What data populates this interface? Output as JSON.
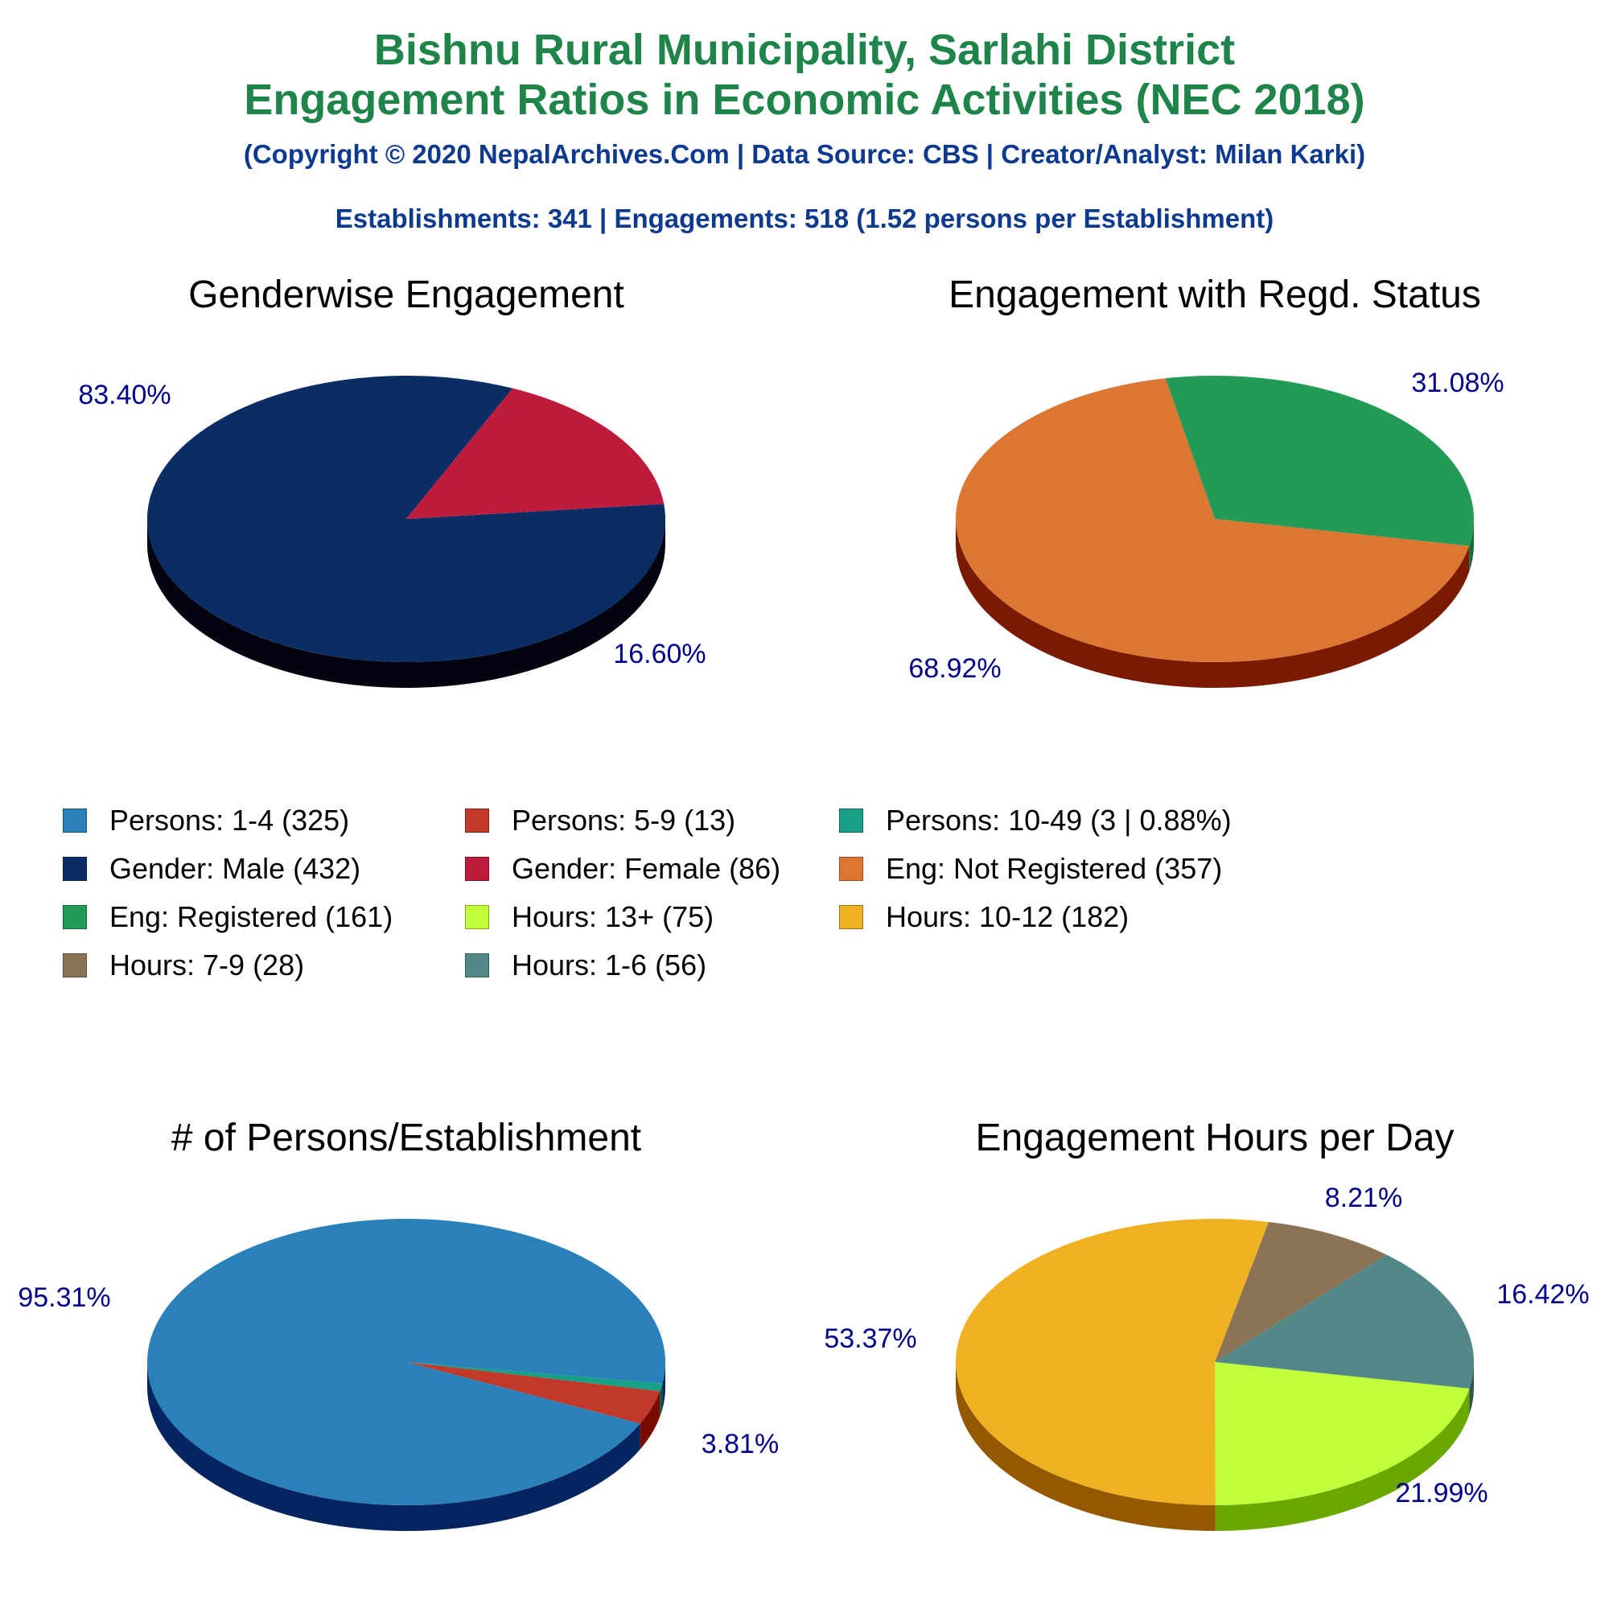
{
  "header": {
    "title_line1": "Bishnu Rural Municipality, Sarlahi District",
    "title_line2": "Engagement Ratios in Economic Activities (NEC 2018)",
    "copyright": "(Copyright © 2020 NepalArchives.Com | Data Source: CBS | Creator/Analyst: Milan Karki)",
    "summary": "Establishments: 341 | Engagements: 518 (1.52 persons per Establishment)"
  },
  "colors": {
    "title": "#1e8449",
    "subtitle": "#0d3a8f",
    "pct_label": "#00008b"
  },
  "chart_data": [
    {
      "type": "pie",
      "title": "Genderwise Engagement",
      "start_angle_deg": -6,
      "slices": [
        {
          "label": "Gender: Male",
          "value": 432,
          "pct_text": "83.40%",
          "color": "#0b2d66",
          "side": "#03040f"
        },
        {
          "label": "Gender: Female",
          "value": 86,
          "pct_text": "16.60%",
          "color": "#be1a3b",
          "side": "#6e0009"
        }
      ]
    },
    {
      "type": "pie",
      "title": "Engagement with Regd. Status",
      "start_angle_deg": -101,
      "slices": [
        {
          "label": "Eng: Registered",
          "value": 161,
          "pct_text": "31.08%",
          "color": "#239b56",
          "side": "#136e38"
        },
        {
          "label": "Eng: Not Registered",
          "value": 357,
          "pct_text": "68.92%",
          "color": "#dc7633",
          "side": "#7a1a00"
        }
      ]
    },
    {
      "type": "pie",
      "title": "# of Persons/Establishment",
      "start_angle_deg": 8.6,
      "slices": [
        {
          "label": "Persons: 10-49",
          "value": 3,
          "pct_text": "",
          "color": "#17a085",
          "side": "#0a5a48"
        },
        {
          "label": "Persons: 5-9",
          "value": 13,
          "pct_text": "3.81%",
          "color": "#c0392b",
          "side": "#7a0a00"
        },
        {
          "label": "Persons: 1-4",
          "value": 325,
          "pct_text": "95.31%",
          "color": "#2a80b9",
          "side": "#052560"
        }
      ]
    },
    {
      "type": "pie",
      "title": "Engagement Hours per Day",
      "start_angle_deg": -78,
      "slices": [
        {
          "label": "Hours: 7-9",
          "value": 28,
          "pct_text": "8.21%",
          "color": "#8b7355",
          "side": "#5c4a33"
        },
        {
          "label": "Hours: 1-6",
          "value": 56,
          "pct_text": "16.42%",
          "color": "#528888",
          "side": "#2f5454"
        },
        {
          "label": "Hours: 13+",
          "value": 75,
          "pct_text": "21.99%",
          "color": "#c0ff3a",
          "side": "#6aa800"
        },
        {
          "label": "Hours: 10-12",
          "value": 182,
          "pct_text": "53.37%",
          "color": "#edb122",
          "side": "#945800"
        }
      ]
    }
  ],
  "legend": [
    {
      "text": "Persons: 1-4 (325)",
      "color": "#2a80b9"
    },
    {
      "text": "Persons: 5-9 (13)",
      "color": "#c0392b"
    },
    {
      "text": "Persons: 10-49 (3 | 0.88%)",
      "color": "#17a085"
    },
    {
      "text": "Gender: Male (432)",
      "color": "#0b2d66"
    },
    {
      "text": "Gender: Female (86)",
      "color": "#be1a3b"
    },
    {
      "text": "Eng: Not Registered (357)",
      "color": "#dc7633"
    },
    {
      "text": "Eng: Registered (161)",
      "color": "#239b56"
    },
    {
      "text": "Hours: 13+ (75)",
      "color": "#c0ff3a"
    },
    {
      "text": "Hours: 10-12 (182)",
      "color": "#edb122"
    },
    {
      "text": "Hours: 7-9 (28)",
      "color": "#8b7355"
    },
    {
      "text": "Hours: 1-6 (56)",
      "color": "#528888"
    }
  ]
}
